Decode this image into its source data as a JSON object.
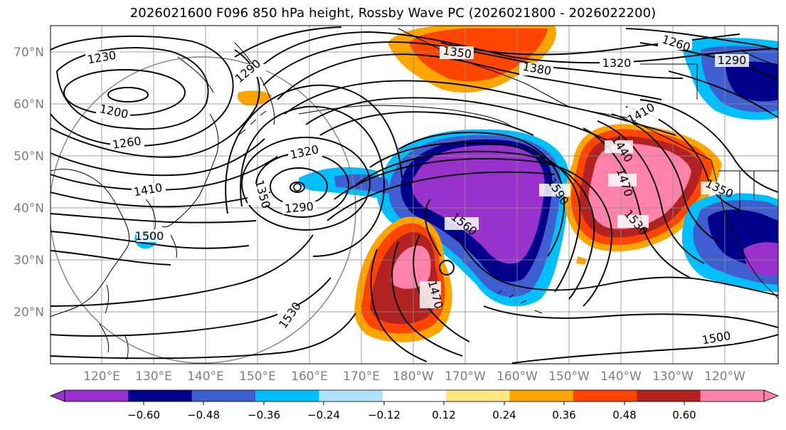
{
  "title": "2026021600 F096 850 hPa height, Rossby Wave PC (2026021800 - 2026022200)",
  "map": {
    "lat_labels": [
      "70°N",
      "60°N",
      "50°N",
      "40°N",
      "30°N",
      "20°N"
    ],
    "lon_labels": [
      "120°E",
      "130°E",
      "140°E",
      "150°E",
      "160°E",
      "170°E",
      "180°W",
      "170°W",
      "160°W",
      "150°W",
      "140°W",
      "130°W",
      "120°W"
    ],
    "contour_labels": [
      "1230",
      "1290",
      "1350",
      "1380",
      "1260",
      "1290",
      "1320",
      "1200",
      "1260",
      "1320",
      "1410",
      "1350",
      "1290",
      "1500",
      "1560",
      "1590",
      "1410",
      "1440",
      "1470",
      "1530",
      "1350",
      "1470",
      "1530",
      "1500",
      "1410",
      "1320"
    ]
  },
  "colorbar": {
    "ticks": [
      "−0.60",
      "−0.48",
      "−0.36",
      "−0.24",
      "−0.12",
      "0.12",
      "0.24",
      "0.36",
      "0.48",
      "0.60"
    ],
    "colors": [
      "#9932cc",
      "#00008b",
      "#3f5fd0",
      "#00bfff",
      "#b0e2ff",
      "#ffffff",
      "#ffe680",
      "#ffa500",
      "#ff4500",
      "#b22222",
      "#ff82ab"
    ]
  }
}
